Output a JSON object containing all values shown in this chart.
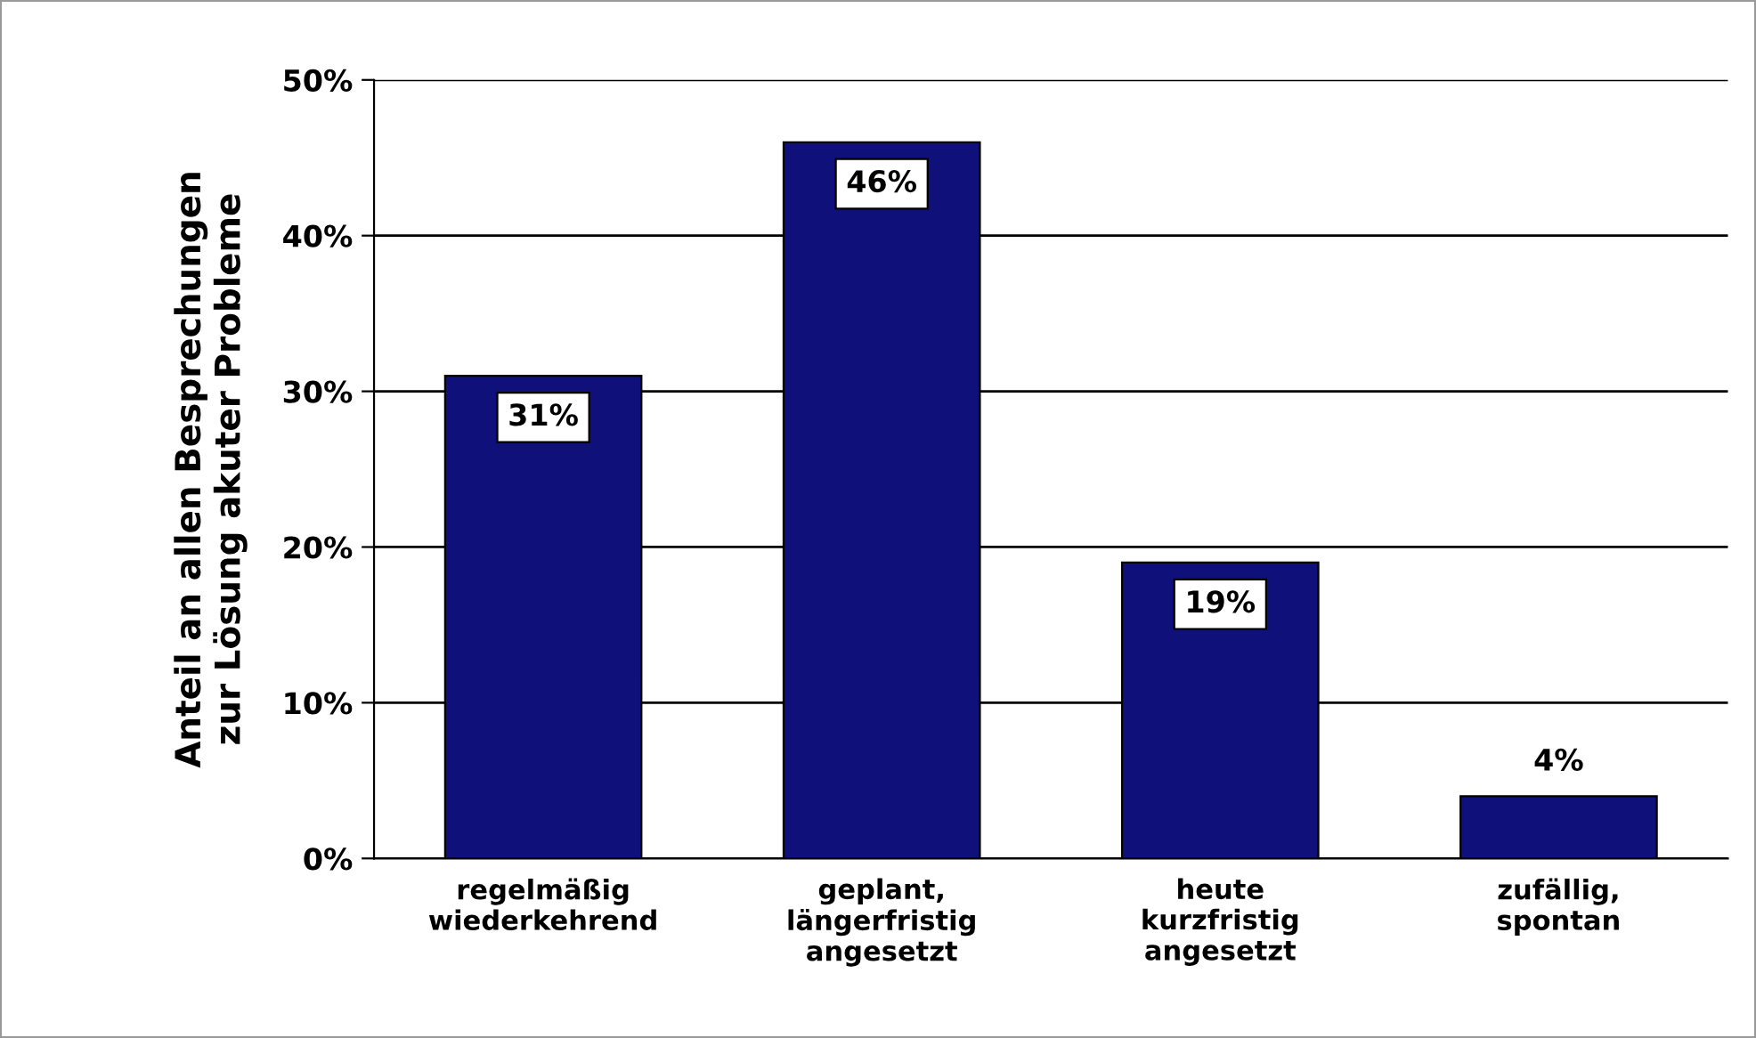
{
  "chart_data": {
    "type": "bar",
    "ylabel": "Anteil an allen Besprechungen\nzur Lösung akuter Probleme",
    "categories": [
      "regelmäßig\nwiederkehrend",
      "geplant,\nlängerfristig\nangesetzt",
      "heute\nkurzfristig\nangesetzt",
      "zufällig,\nspontan"
    ],
    "values": [
      31,
      46,
      19,
      4
    ],
    "value_labels": [
      "31%",
      "46%",
      "19%",
      "4%"
    ],
    "color": "#10107a",
    "ylim": [
      0,
      50
    ],
    "yticks": [
      {
        "value": 0,
        "label": "0%"
      },
      {
        "value": 10,
        "label": "10%"
      },
      {
        "value": 20,
        "label": "20%"
      },
      {
        "value": 30,
        "label": "30%"
      },
      {
        "value": 40,
        "label": "40%"
      },
      {
        "value": 50,
        "label": "50%"
      }
    ],
    "grid": "y"
  }
}
